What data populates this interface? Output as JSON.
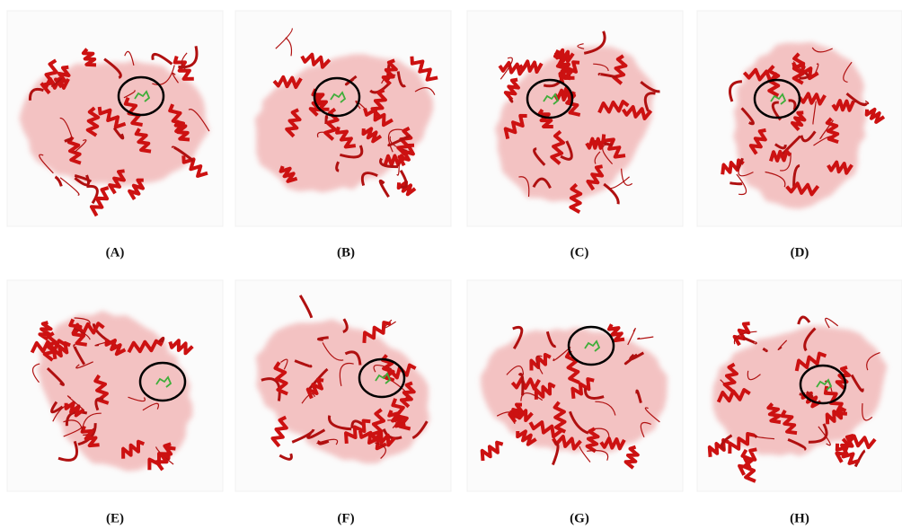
{
  "panels": [
    {
      "label": "(A)"
    },
    {
      "label": "(B)"
    },
    {
      "label": "(C)"
    },
    {
      "label": "(D)"
    },
    {
      "label": "(E)"
    },
    {
      "label": "(F)"
    },
    {
      "label": "(G)"
    },
    {
      "label": "(H)"
    }
  ]
}
